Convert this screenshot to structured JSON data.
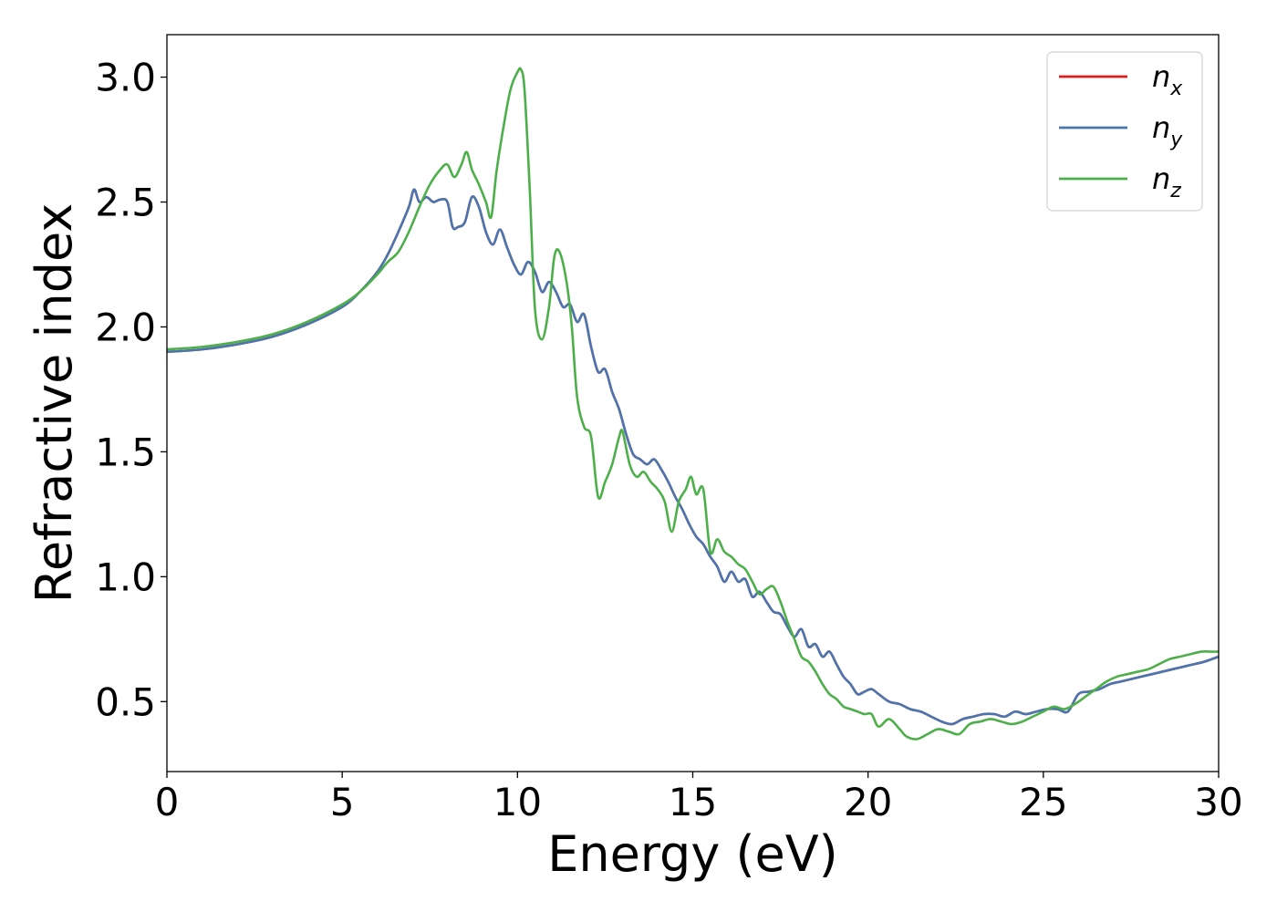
{
  "chart_data": {
    "type": "line",
    "title": "",
    "xlabel": "Energy (eV)",
    "ylabel": "Refractive index",
    "xlim": [
      0,
      30
    ],
    "ylim": [
      0.22,
      3.17
    ],
    "xticks": [
      "0",
      "5",
      "10",
      "15",
      "20",
      "25",
      "30"
    ],
    "yticks": [
      "0.5",
      "1.0",
      "1.5",
      "2.0",
      "2.5",
      "3.0"
    ],
    "grid": false,
    "legend_position": "top-right",
    "series": [
      {
        "name": "n_x",
        "legend_base": "n",
        "legend_sub": "x",
        "color": "#e41a1c",
        "x": [
          0,
          1,
          2,
          3,
          4,
          5,
          5.5,
          6,
          6.3,
          6.6,
          6.9,
          7.05,
          7.2,
          7.4,
          7.6,
          7.8,
          8.0,
          8.15,
          8.3,
          8.5,
          8.7,
          8.9,
          9.1,
          9.3,
          9.5,
          9.7,
          9.9,
          10.1,
          10.3,
          10.5,
          10.7,
          10.9,
          11.1,
          11.3,
          11.5,
          11.7,
          11.9,
          12.1,
          12.3,
          12.5,
          12.7,
          12.9,
          13.1,
          13.3,
          13.5,
          13.7,
          13.9,
          14.1,
          14.3,
          14.5,
          14.7,
          14.9,
          15.1,
          15.3,
          15.5,
          15.7,
          15.9,
          16.1,
          16.3,
          16.5,
          16.7,
          16.9,
          17.1,
          17.3,
          17.5,
          17.7,
          17.9,
          18.1,
          18.3,
          18.5,
          18.7,
          18.9,
          19.1,
          19.3,
          19.5,
          19.7,
          19.9,
          20.1,
          20.3,
          20.6,
          20.9,
          21.2,
          21.5,
          21.8,
          22.1,
          22.4,
          22.7,
          23.0,
          23.3,
          23.6,
          23.9,
          24.2,
          24.5,
          24.8,
          25.1,
          25.4,
          25.7,
          26.0,
          26.3,
          26.6,
          26.9,
          27.2,
          27.5,
          27.8,
          28.1,
          28.4,
          28.7,
          29.0,
          29.3,
          29.6,
          30.0
        ],
        "y": [
          1.9,
          1.91,
          1.93,
          1.96,
          2.01,
          2.08,
          2.14,
          2.22,
          2.29,
          2.38,
          2.48,
          2.55,
          2.5,
          2.52,
          2.5,
          2.51,
          2.5,
          2.4,
          2.4,
          2.42,
          2.52,
          2.48,
          2.38,
          2.33,
          2.39,
          2.32,
          2.25,
          2.21,
          2.26,
          2.22,
          2.14,
          2.18,
          2.14,
          2.08,
          2.09,
          2.02,
          2.05,
          1.92,
          1.82,
          1.83,
          1.74,
          1.67,
          1.57,
          1.49,
          1.47,
          1.45,
          1.47,
          1.43,
          1.38,
          1.32,
          1.27,
          1.21,
          1.16,
          1.13,
          1.08,
          1.04,
          0.98,
          1.02,
          0.98,
          0.99,
          0.92,
          0.94,
          0.9,
          0.86,
          0.85,
          0.8,
          0.76,
          0.79,
          0.72,
          0.73,
          0.68,
          0.7,
          0.65,
          0.6,
          0.57,
          0.53,
          0.54,
          0.55,
          0.53,
          0.5,
          0.49,
          0.47,
          0.46,
          0.44,
          0.42,
          0.41,
          0.43,
          0.44,
          0.45,
          0.45,
          0.44,
          0.46,
          0.45,
          0.46,
          0.47,
          0.47,
          0.46,
          0.53,
          0.54,
          0.55,
          0.57,
          0.58,
          0.59,
          0.6,
          0.61,
          0.62,
          0.63,
          0.64,
          0.65,
          0.66,
          0.68
        ]
      },
      {
        "name": "n_y",
        "legend_base": "n",
        "legend_sub": "y",
        "color": "#4a76b0",
        "x": [
          0,
          1,
          2,
          3,
          4,
          5,
          5.5,
          6,
          6.3,
          6.6,
          6.9,
          7.05,
          7.2,
          7.4,
          7.6,
          7.8,
          8.0,
          8.15,
          8.3,
          8.5,
          8.7,
          8.9,
          9.1,
          9.3,
          9.5,
          9.7,
          9.9,
          10.1,
          10.3,
          10.5,
          10.7,
          10.9,
          11.1,
          11.3,
          11.5,
          11.7,
          11.9,
          12.1,
          12.3,
          12.5,
          12.7,
          12.9,
          13.1,
          13.3,
          13.5,
          13.7,
          13.9,
          14.1,
          14.3,
          14.5,
          14.7,
          14.9,
          15.1,
          15.3,
          15.5,
          15.7,
          15.9,
          16.1,
          16.3,
          16.5,
          16.7,
          16.9,
          17.1,
          17.3,
          17.5,
          17.7,
          17.9,
          18.1,
          18.3,
          18.5,
          18.7,
          18.9,
          19.1,
          19.3,
          19.5,
          19.7,
          19.9,
          20.1,
          20.3,
          20.6,
          20.9,
          21.2,
          21.5,
          21.8,
          22.1,
          22.4,
          22.7,
          23.0,
          23.3,
          23.6,
          23.9,
          24.2,
          24.5,
          24.8,
          25.1,
          25.4,
          25.7,
          26.0,
          26.3,
          26.6,
          26.9,
          27.2,
          27.5,
          27.8,
          28.1,
          28.4,
          28.7,
          29.0,
          29.3,
          29.6,
          30.0
        ],
        "y": [
          1.9,
          1.91,
          1.93,
          1.96,
          2.01,
          2.08,
          2.14,
          2.22,
          2.29,
          2.38,
          2.48,
          2.55,
          2.5,
          2.52,
          2.5,
          2.51,
          2.5,
          2.4,
          2.4,
          2.42,
          2.52,
          2.48,
          2.38,
          2.33,
          2.39,
          2.32,
          2.25,
          2.21,
          2.26,
          2.22,
          2.14,
          2.18,
          2.14,
          2.08,
          2.09,
          2.02,
          2.05,
          1.92,
          1.82,
          1.83,
          1.74,
          1.67,
          1.57,
          1.49,
          1.47,
          1.45,
          1.47,
          1.43,
          1.38,
          1.32,
          1.27,
          1.21,
          1.16,
          1.13,
          1.08,
          1.04,
          0.98,
          1.02,
          0.98,
          0.99,
          0.92,
          0.94,
          0.9,
          0.86,
          0.85,
          0.8,
          0.76,
          0.79,
          0.72,
          0.73,
          0.68,
          0.7,
          0.65,
          0.6,
          0.57,
          0.53,
          0.54,
          0.55,
          0.53,
          0.5,
          0.49,
          0.47,
          0.46,
          0.44,
          0.42,
          0.41,
          0.43,
          0.44,
          0.45,
          0.45,
          0.44,
          0.46,
          0.45,
          0.46,
          0.47,
          0.47,
          0.46,
          0.53,
          0.54,
          0.55,
          0.57,
          0.58,
          0.59,
          0.6,
          0.61,
          0.62,
          0.63,
          0.64,
          0.65,
          0.66,
          0.68
        ]
      },
      {
        "name": "n_z",
        "legend_base": "n",
        "legend_sub": "z",
        "color": "#4daf4a",
        "x": [
          0,
          1,
          2,
          3,
          4,
          5,
          5.5,
          6,
          6.3,
          6.6,
          6.9,
          7.2,
          7.5,
          7.8,
          8.0,
          8.2,
          8.4,
          8.55,
          8.7,
          8.9,
          9.1,
          9.25,
          9.4,
          9.6,
          9.8,
          10.0,
          10.1,
          10.2,
          10.35,
          10.5,
          10.7,
          10.9,
          11.05,
          11.2,
          11.4,
          11.55,
          11.7,
          11.9,
          12.1,
          12.3,
          12.5,
          12.7,
          12.9,
          13.0,
          13.2,
          13.4,
          13.6,
          13.8,
          14.0,
          14.2,
          14.4,
          14.6,
          14.8,
          14.95,
          15.1,
          15.3,
          15.5,
          15.7,
          15.9,
          16.1,
          16.3,
          16.5,
          16.7,
          16.9,
          17.1,
          17.3,
          17.5,
          17.7,
          17.9,
          18.1,
          18.3,
          18.5,
          18.7,
          18.9,
          19.1,
          19.3,
          19.5,
          19.7,
          19.9,
          20.1,
          20.3,
          20.6,
          20.9,
          21.1,
          21.4,
          21.7,
          22.0,
          22.3,
          22.6,
          22.9,
          23.2,
          23.5,
          23.8,
          24.1,
          24.4,
          24.7,
          25.0,
          25.3,
          25.6,
          25.9,
          26.2,
          26.5,
          26.8,
          27.1,
          27.4,
          27.7,
          28.0,
          28.3,
          28.6,
          28.9,
          29.2,
          29.5,
          29.8,
          30.0
        ],
        "y": [
          1.91,
          1.92,
          1.94,
          1.97,
          2.02,
          2.09,
          2.14,
          2.21,
          2.26,
          2.3,
          2.38,
          2.48,
          2.57,
          2.63,
          2.65,
          2.6,
          2.65,
          2.7,
          2.63,
          2.57,
          2.5,
          2.44,
          2.62,
          2.8,
          2.95,
          3.02,
          3.03,
          2.95,
          2.55,
          2.07,
          1.95,
          2.08,
          2.28,
          2.3,
          2.18,
          2.0,
          1.72,
          1.6,
          1.56,
          1.32,
          1.38,
          1.45,
          1.56,
          1.58,
          1.45,
          1.4,
          1.42,
          1.38,
          1.35,
          1.3,
          1.18,
          1.3,
          1.35,
          1.4,
          1.33,
          1.35,
          1.1,
          1.15,
          1.1,
          1.08,
          1.05,
          1.03,
          0.98,
          0.93,
          0.95,
          0.96,
          0.9,
          0.82,
          0.75,
          0.68,
          0.66,
          0.62,
          0.57,
          0.53,
          0.51,
          0.48,
          0.47,
          0.46,
          0.45,
          0.45,
          0.4,
          0.43,
          0.39,
          0.36,
          0.35,
          0.37,
          0.39,
          0.38,
          0.37,
          0.41,
          0.42,
          0.43,
          0.42,
          0.41,
          0.42,
          0.44,
          0.46,
          0.48,
          0.47,
          0.49,
          0.52,
          0.55,
          0.58,
          0.6,
          0.61,
          0.62,
          0.63,
          0.65,
          0.67,
          0.68,
          0.69,
          0.7,
          0.7,
          0.7
        ]
      }
    ]
  }
}
